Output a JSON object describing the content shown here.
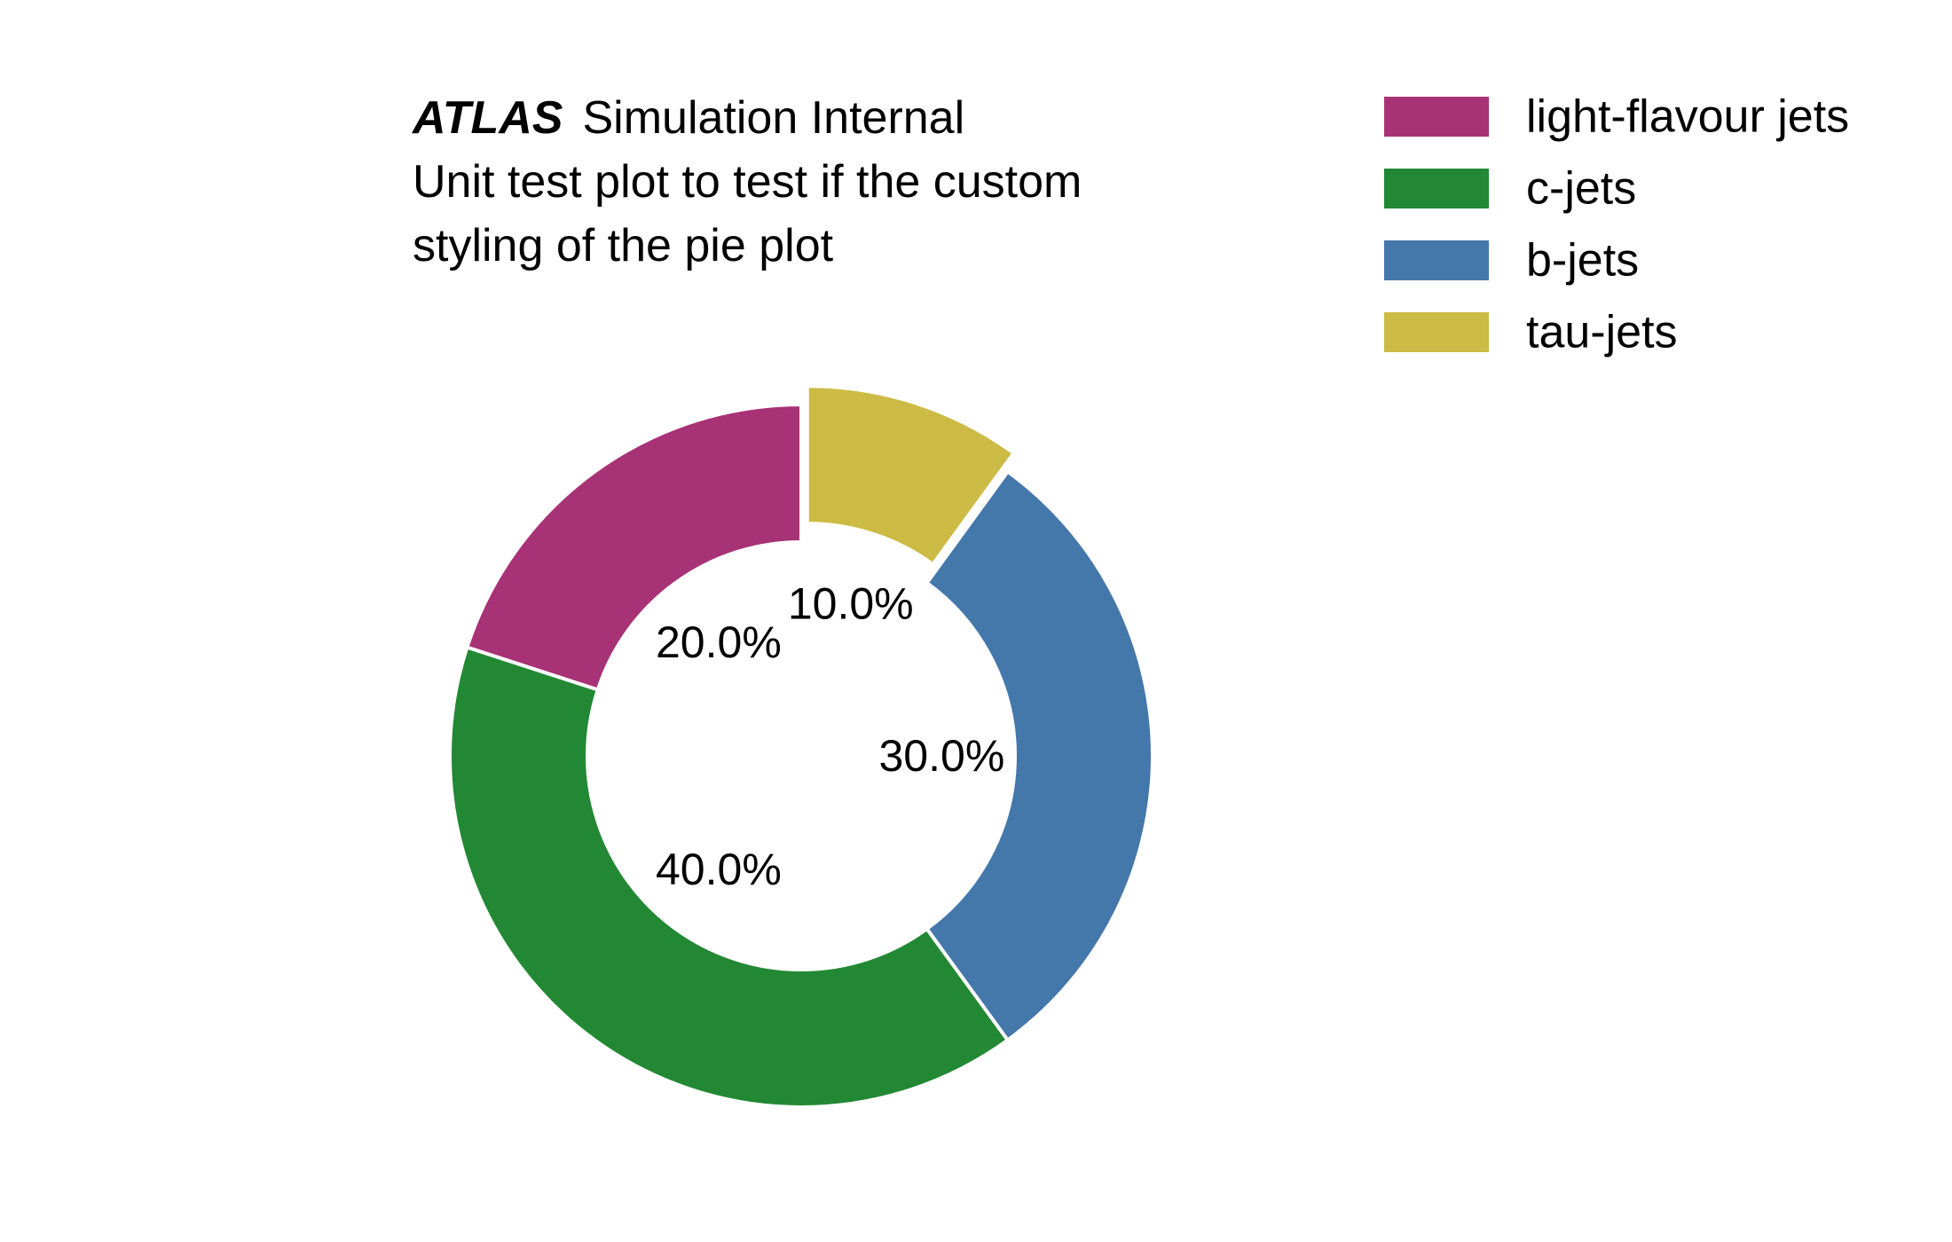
{
  "chart_data": {
    "type": "pie",
    "style": "donut",
    "experiment_label": "ATLAS",
    "status_label": "Simulation Internal",
    "subtitle_lines": [
      "Unit test plot to test if the custom",
      "styling of the pie plot"
    ],
    "start_angle_deg": 90,
    "direction": "counterclockwise",
    "exploded_slice": "tau-jets",
    "slices": [
      {
        "label": "light-flavour jets",
        "value": 20,
        "percent_label": "20.0%",
        "color": "#a83276"
      },
      {
        "label": "c-jets",
        "value": 40,
        "percent_label": "40.0%",
        "color": "#238834"
      },
      {
        "label": "b-jets",
        "value": 30,
        "percent_label": "30.0%",
        "color": "#4477aa"
      },
      {
        "label": "tau-jets",
        "value": 10,
        "percent_label": "10.0%",
        "color": "#ccbb44"
      }
    ],
    "legend_position": "top-right"
  }
}
